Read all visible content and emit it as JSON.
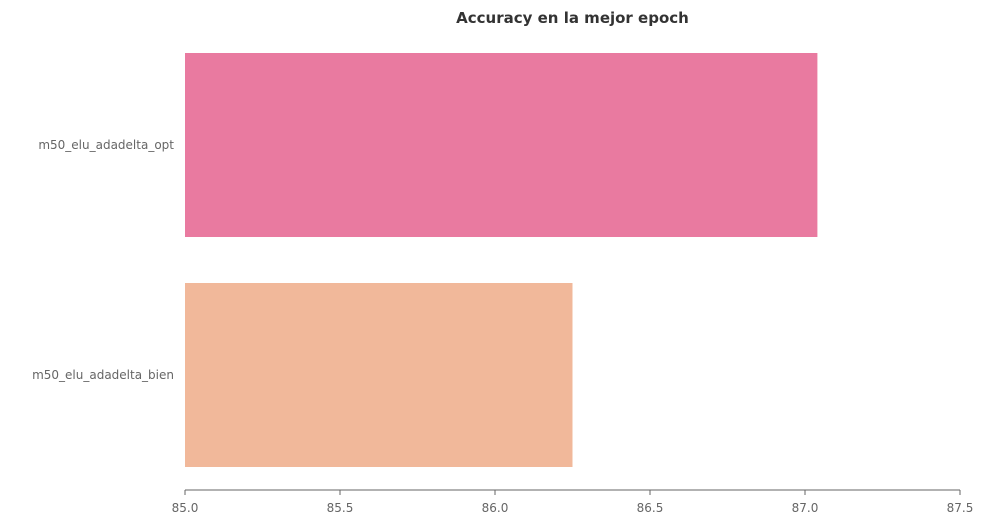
{
  "chart_data": {
    "type": "bar",
    "orientation": "horizontal",
    "title": "Accuracy en la mejor epoch",
    "xlabel": "",
    "ylabel": "",
    "categories": [
      "m50_elu_adadelta_opt",
      "m50_elu_adadelta_bien"
    ],
    "values": [
      87.04,
      86.25
    ],
    "colors": [
      "#e97aa0",
      "#f1b89a"
    ],
    "xlim": [
      85.0,
      87.5
    ],
    "xticks": [
      "85.0",
      "85.5",
      "86.0",
      "86.5",
      "87.0",
      "87.5"
    ],
    "grid": false,
    "legend": "none"
  }
}
